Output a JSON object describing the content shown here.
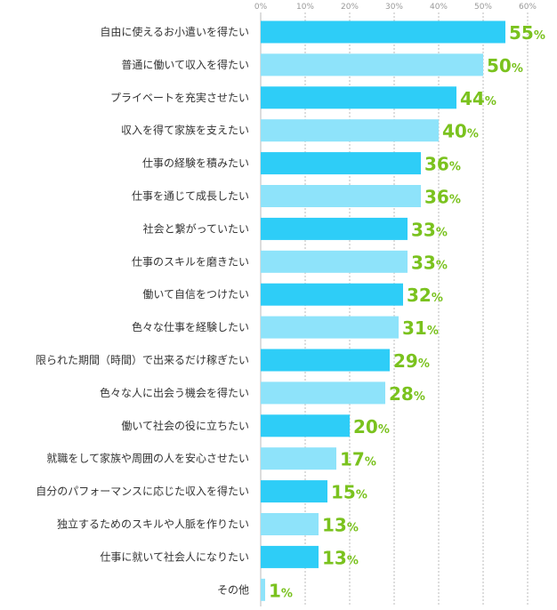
{
  "chart_data": {
    "type": "bar",
    "orientation": "horizontal",
    "categories": [
      "自由に使えるお小遣いを得たい",
      "普通に働いて収入を得たい",
      "プライベートを充実させたい",
      "収入を得て家族を支えたい",
      "仕事の経験を積みたい",
      "仕事を通じて成長したい",
      "社会と繋がっていたい",
      "仕事のスキルを磨きたい",
      "働いて自信をつけたい",
      "色々な仕事を経験したい",
      "限られた期間（時間）で出来るだけ稼ぎたい",
      "色々な人に出会う機会を得たい",
      "働いて社会の役に立ちたい",
      "就職をして家族や周囲の人を安心させたい",
      "自分のパフォーマンスに応じた収入を得たい",
      "独立するためのスキルや人脈を作りたい",
      "仕事に就いて社会人になりたい",
      "その他"
    ],
    "values": [
      55,
      50,
      44,
      40,
      36,
      36,
      33,
      33,
      32,
      31,
      29,
      28,
      20,
      17,
      15,
      13,
      13,
      1
    ],
    "value_labels": [
      "55",
      "50",
      "44",
      "40",
      "36",
      "36",
      "33",
      "33",
      "32",
      "31",
      "29",
      "28",
      "20",
      "17",
      "15",
      "13",
      "13",
      "1"
    ],
    "value_unit": "%",
    "xlim": [
      0,
      60
    ],
    "ticks": [
      0,
      10,
      20,
      30,
      40,
      50,
      60
    ],
    "tick_labels": [
      "0%",
      "10%",
      "20%",
      "30%",
      "40%",
      "50%",
      "60%"
    ],
    "grid": true,
    "title": "",
    "xlabel": "",
    "ylabel": "",
    "colors": {
      "bar_dark": "#2ecdf7",
      "bar_light": "#8ee3fa",
      "value_label": "#7ac21e",
      "grid": "#bbbbbb",
      "tick_label": "#999999",
      "category_label": "#333333"
    }
  }
}
